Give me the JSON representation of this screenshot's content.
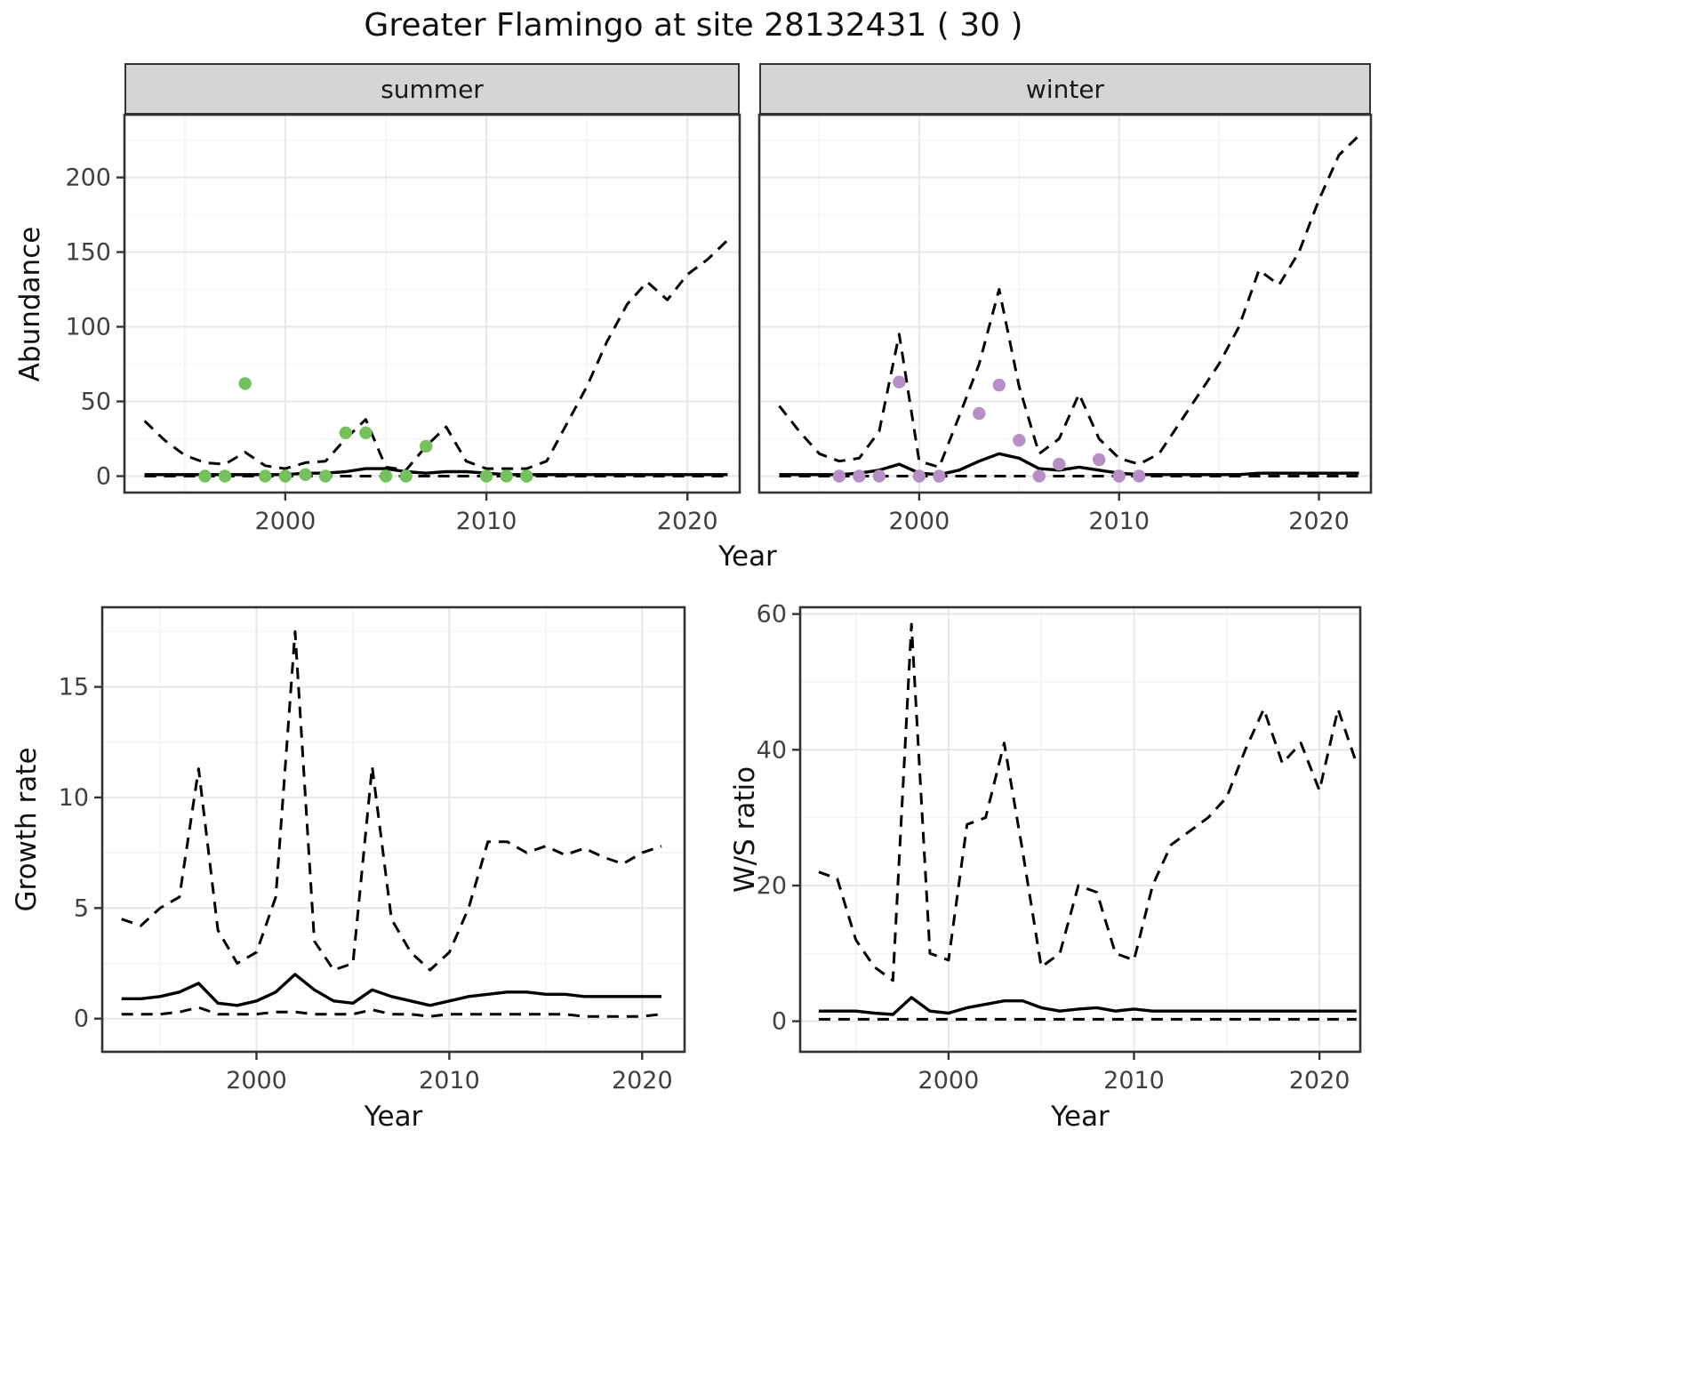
{
  "title": "Greater Flamingo at site 28132431 ( 30 )",
  "colors": {
    "summer_points": "#74c15e",
    "winter_points": "#b58fc6",
    "line": "#000000",
    "strip_fill": "#d5d5d5"
  },
  "chart_data": [
    {
      "id": "abundance-summer",
      "type": "line",
      "facet": "summer",
      "xlabel": "Year",
      "ylabel": "Abundance",
      "xlim": [
        1992,
        2022.6
      ],
      "ylim": [
        -11,
        242
      ],
      "xticks": [
        2000,
        2010,
        2020
      ],
      "yticks": [
        0,
        50,
        100,
        150,
        200
      ],
      "grid": true,
      "legend": "none",
      "years": [
        1993,
        1994,
        1995,
        1996,
        1997,
        1998,
        1999,
        2000,
        2001,
        2002,
        2003,
        2004,
        2005,
        2006,
        2007,
        2008,
        2009,
        2010,
        2011,
        2012,
        2013,
        2014,
        2015,
        2016,
        2017,
        2018,
        2019,
        2020,
        2021,
        2022
      ],
      "series": [
        {
          "name": "upper-credible-interval",
          "style": "dashed",
          "values": [
            37,
            24,
            14,
            9,
            8,
            16,
            7,
            5,
            9,
            10,
            25,
            38,
            6,
            4,
            20,
            33,
            10,
            5,
            5,
            5,
            10,
            35,
            60,
            90,
            115,
            130,
            118,
            135,
            145,
            158
          ]
        },
        {
          "name": "lower-credible-interval",
          "style": "dashed",
          "values": [
            0,
            0,
            0,
            0,
            0,
            0,
            0,
            0,
            0,
            0,
            0,
            0,
            0,
            0,
            0,
            0,
            0,
            0,
            0,
            0,
            0,
            0,
            0,
            0,
            0,
            0,
            0,
            0,
            0,
            0
          ]
        },
        {
          "name": "modelled-median",
          "style": "solid",
          "values": [
            1,
            1,
            1,
            1,
            1,
            1,
            1,
            1,
            2,
            2,
            3,
            5,
            5,
            3,
            2,
            3,
            3,
            2,
            1,
            1,
            1,
            1,
            1,
            1,
            1,
            1,
            1,
            1,
            1,
            1
          ]
        },
        {
          "name": "observed-counts",
          "style": "points",
          "color": "#74c15e",
          "x": [
            1996,
            1997,
            1998,
            1999,
            2000,
            2001,
            2002,
            2003,
            2004,
            2005,
            2006,
            2007,
            2010,
            2011,
            2012
          ],
          "y": [
            0,
            0,
            62,
            0,
            0,
            1,
            0,
            29,
            29,
            0,
            0,
            20,
            0,
            0,
            0
          ]
        }
      ]
    },
    {
      "id": "abundance-winter",
      "type": "line",
      "facet": "winter",
      "xlabel": "Year",
      "ylabel": "Abundance",
      "xlim": [
        1992,
        2022.6
      ],
      "ylim": [
        -11,
        242
      ],
      "xticks": [
        2000,
        2010,
        2020
      ],
      "yticks": [
        0,
        50,
        100,
        150,
        200
      ],
      "y_tick_labels": false,
      "grid": true,
      "legend": "none",
      "years": [
        1993,
        1994,
        1995,
        1996,
        1997,
        1998,
        1999,
        2000,
        2001,
        2002,
        2003,
        2004,
        2005,
        2006,
        2007,
        2008,
        2009,
        2010,
        2011,
        2012,
        2013,
        2014,
        2015,
        2016,
        2017,
        2018,
        2019,
        2020,
        2021,
        2022
      ],
      "series": [
        {
          "name": "upper-credible-interval",
          "style": "dashed",
          "values": [
            47,
            30,
            15,
            10,
            12,
            30,
            95,
            10,
            6,
            40,
            75,
            125,
            60,
            15,
            25,
            55,
            25,
            12,
            8,
            15,
            35,
            55,
            75,
            100,
            138,
            128,
            150,
            185,
            215,
            228
          ]
        },
        {
          "name": "lower-credible-interval",
          "style": "dashed",
          "values": [
            0,
            0,
            0,
            0,
            0,
            0,
            0,
            0,
            0,
            0,
            0,
            0,
            0,
            0,
            0,
            0,
            0,
            0,
            0,
            0,
            0,
            0,
            0,
            0,
            0,
            0,
            0,
            0,
            0,
            0
          ]
        },
        {
          "name": "modelled-median",
          "style": "solid",
          "values": [
            1,
            1,
            1,
            1,
            2,
            4,
            8,
            2,
            1,
            4,
            10,
            15,
            12,
            5,
            4,
            6,
            4,
            2,
            1,
            1,
            1,
            1,
            1,
            1,
            2,
            2,
            2,
            2,
            2,
            2
          ]
        },
        {
          "name": "observed-counts",
          "style": "points",
          "color": "#b58fc6",
          "x": [
            1996,
            1997,
            1998,
            1999,
            2000,
            2001,
            2003,
            2004,
            2005,
            2006,
            2007,
            2009,
            2010,
            2011
          ],
          "y": [
            0,
            0,
            0,
            63,
            0,
            0,
            42,
            61,
            24,
            0,
            8,
            11,
            0,
            0
          ]
        }
      ]
    },
    {
      "id": "growth-rate",
      "type": "line",
      "facet": "",
      "xlabel": "Year",
      "ylabel": "Growth rate",
      "xlim": [
        1992,
        2022.2
      ],
      "ylim": [
        -1.5,
        18.6
      ],
      "xticks": [
        2000,
        2010,
        2020
      ],
      "yticks": [
        0,
        5,
        10,
        15
      ],
      "grid": true,
      "legend": "none",
      "years": [
        1993,
        1994,
        1995,
        1996,
        1997,
        1998,
        1999,
        2000,
        2001,
        2002,
        2003,
        2004,
        2005,
        2006,
        2007,
        2008,
        2009,
        2010,
        2011,
        2012,
        2013,
        2014,
        2015,
        2016,
        2017,
        2018,
        2019,
        2020,
        2021
      ],
      "series": [
        {
          "name": "upper-credible-interval",
          "style": "dashed",
          "values": [
            4.5,
            4.2,
            5.0,
            5.5,
            11.3,
            4.0,
            2.5,
            3.0,
            5.5,
            17.5,
            3.5,
            2.2,
            2.5,
            11.4,
            4.5,
            3.0,
            2.2,
            3.0,
            5.0,
            8.0,
            8.0,
            7.5,
            7.8,
            7.4,
            7.7,
            7.3,
            7.0,
            7.5,
            7.8
          ]
        },
        {
          "name": "lower-credible-interval",
          "style": "dashed",
          "values": [
            0.2,
            0.2,
            0.2,
            0.3,
            0.5,
            0.2,
            0.2,
            0.2,
            0.3,
            0.3,
            0.2,
            0.2,
            0.2,
            0.4,
            0.2,
            0.2,
            0.1,
            0.2,
            0.2,
            0.2,
            0.2,
            0.2,
            0.2,
            0.2,
            0.1,
            0.1,
            0.1,
            0.1,
            0.2
          ]
        },
        {
          "name": "modelled-median",
          "style": "solid",
          "values": [
            0.9,
            0.9,
            1.0,
            1.2,
            1.6,
            0.7,
            0.6,
            0.8,
            1.2,
            2.0,
            1.3,
            0.8,
            0.7,
            1.3,
            1.0,
            0.8,
            0.6,
            0.8,
            1.0,
            1.1,
            1.2,
            1.2,
            1.1,
            1.1,
            1.0,
            1.0,
            1.0,
            1.0,
            1.0
          ]
        }
      ]
    },
    {
      "id": "ws-ratio",
      "type": "line",
      "facet": "",
      "xlabel": "Year",
      "ylabel": "W/S ratio",
      "xlim": [
        1992,
        2022.2
      ],
      "ylim": [
        -4.5,
        61
      ],
      "xticks": [
        2000,
        2010,
        2020
      ],
      "yticks": [
        0,
        20,
        40,
        60
      ],
      "grid": true,
      "legend": "none",
      "years": [
        1993,
        1994,
        1995,
        1996,
        1997,
        1998,
        1999,
        2000,
        2001,
        2002,
        2003,
        2004,
        2005,
        2006,
        2007,
        2008,
        2009,
        2010,
        2011,
        2012,
        2013,
        2014,
        2015,
        2016,
        2017,
        2018,
        2019,
        2020,
        2021,
        2022
      ],
      "series": [
        {
          "name": "upper-credible-interval",
          "style": "dashed",
          "values": [
            22,
            21,
            12,
            8,
            6,
            58.5,
            10,
            9,
            29,
            30,
            41,
            25,
            8,
            10,
            20,
            19,
            10,
            9,
            20,
            26,
            28,
            30,
            33,
            40,
            46,
            38,
            41,
            34,
            46,
            38
          ]
        },
        {
          "name": "lower-credible-interval",
          "style": "dashed",
          "values": [
            0.3,
            0.3,
            0.3,
            0.3,
            0.3,
            0.3,
            0.3,
            0.3,
            0.3,
            0.3,
            0.3,
            0.3,
            0.3,
            0.3,
            0.3,
            0.3,
            0.3,
            0.3,
            0.3,
            0.3,
            0.3,
            0.3,
            0.3,
            0.3,
            0.3,
            0.3,
            0.3,
            0.3,
            0.3,
            0.3
          ]
        },
        {
          "name": "modelled-median",
          "style": "solid",
          "values": [
            1.5,
            1.5,
            1.5,
            1.2,
            1.0,
            3.5,
            1.5,
            1.2,
            2.0,
            2.5,
            3.0,
            3.0,
            2.0,
            1.5,
            1.8,
            2.0,
            1.5,
            1.8,
            1.5,
            1.5,
            1.5,
            1.5,
            1.5,
            1.5,
            1.5,
            1.5,
            1.5,
            1.5,
            1.5,
            1.5
          ]
        }
      ]
    }
  ]
}
